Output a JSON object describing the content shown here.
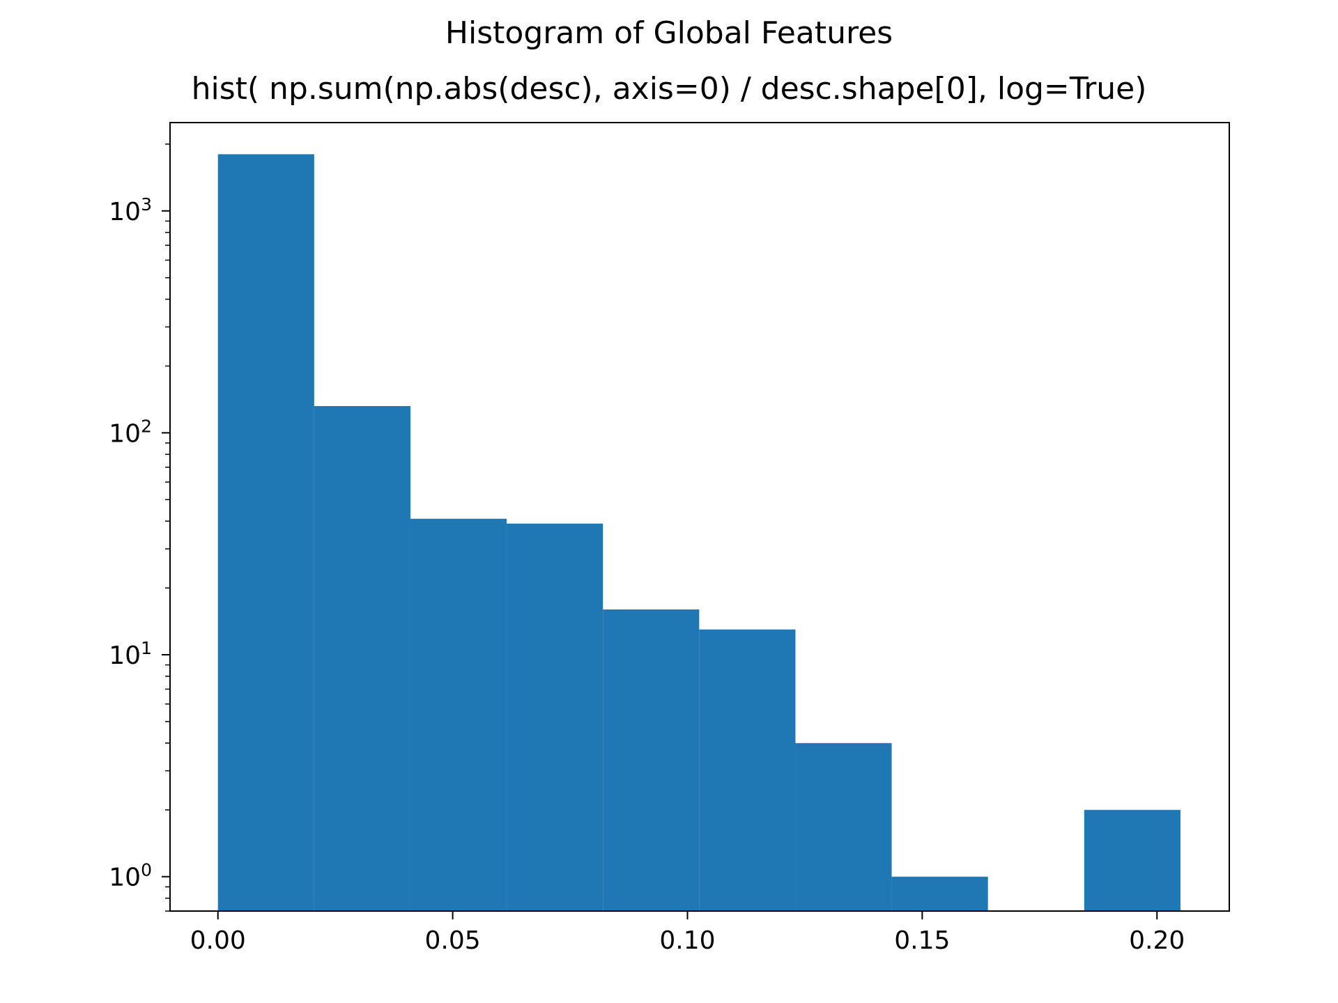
{
  "chart_data": {
    "type": "bar",
    "title": "Histogram of Global Features",
    "subtitle": "hist( np.sum(np.abs(desc), axis=0) / desc.shape[0], log=True)",
    "xlabel": "",
    "ylabel": "",
    "y_scale": "log",
    "grid": false,
    "bar_color": "#1f77b4",
    "xlim": [
      -0.0102,
      0.2154
    ],
    "ylim": [
      0.7,
      2500
    ],
    "x_ticks": [
      {
        "value": 0.0,
        "label": "0.00"
      },
      {
        "value": 0.05,
        "label": "0.05"
      },
      {
        "value": 0.1,
        "label": "0.10"
      },
      {
        "value": 0.15,
        "label": "0.15"
      },
      {
        "value": 0.2,
        "label": "0.20"
      }
    ],
    "y_ticks": [
      {
        "value": 1,
        "base": "10",
        "exp": "0"
      },
      {
        "value": 10,
        "base": "10",
        "exp": "1"
      },
      {
        "value": 100,
        "base": "10",
        "exp": "2"
      },
      {
        "value": 1000,
        "base": "10",
        "exp": "3"
      }
    ],
    "bin_edges": [
      0.0,
      0.0205,
      0.041,
      0.0615,
      0.082,
      0.1025,
      0.123,
      0.1435,
      0.164,
      0.1845,
      0.205
    ],
    "counts": [
      1800,
      132,
      41,
      39,
      16,
      13,
      4,
      1,
      0,
      2
    ]
  }
}
